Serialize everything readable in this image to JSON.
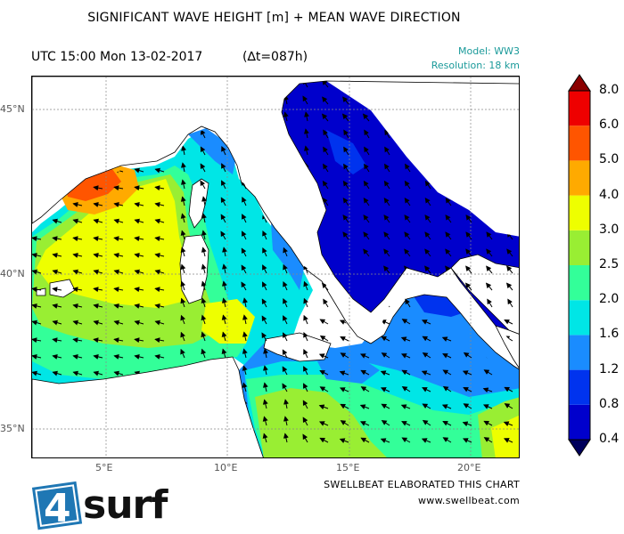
{
  "header": {
    "title": "SIGNIFICANT WAVE HEIGHT [m] + MEAN WAVE DIRECTION",
    "time": "UTC 15:00 Mon 13-02-2017",
    "delta": "(∆t=087h)",
    "model": "Model: WW3",
    "resolution": "Resolution: 18 km"
  },
  "axes": {
    "lat_labels": [
      "45°N",
      "40°N",
      "35°N"
    ],
    "lon_labels": [
      "5°E",
      "10°E",
      "15°E",
      "20°E"
    ]
  },
  "colorbar": {
    "levels": [
      "0.4",
      "0.8",
      "1.2",
      "1.6",
      "2.0",
      "2.5",
      "3.0",
      "4.0",
      "5.0",
      "6.0",
      "8.0"
    ],
    "colors": [
      "#0000cc",
      "#0033ee",
      "#1a8cff",
      "#00e6e6",
      "#33ff99",
      "#99ee33",
      "#eeff00",
      "#ffaa00",
      "#ff5500",
      "#ee0000"
    ],
    "low_cap_color": "#00005c",
    "high_cap_color": "#8b0000"
  },
  "footer": {
    "credit_line1": "SWELLBEAT ELABORATED THIS CHART",
    "credit_line2": "www.swellbeat.com",
    "logo_text_num": "4",
    "logo_text_word": "surf"
  }
}
